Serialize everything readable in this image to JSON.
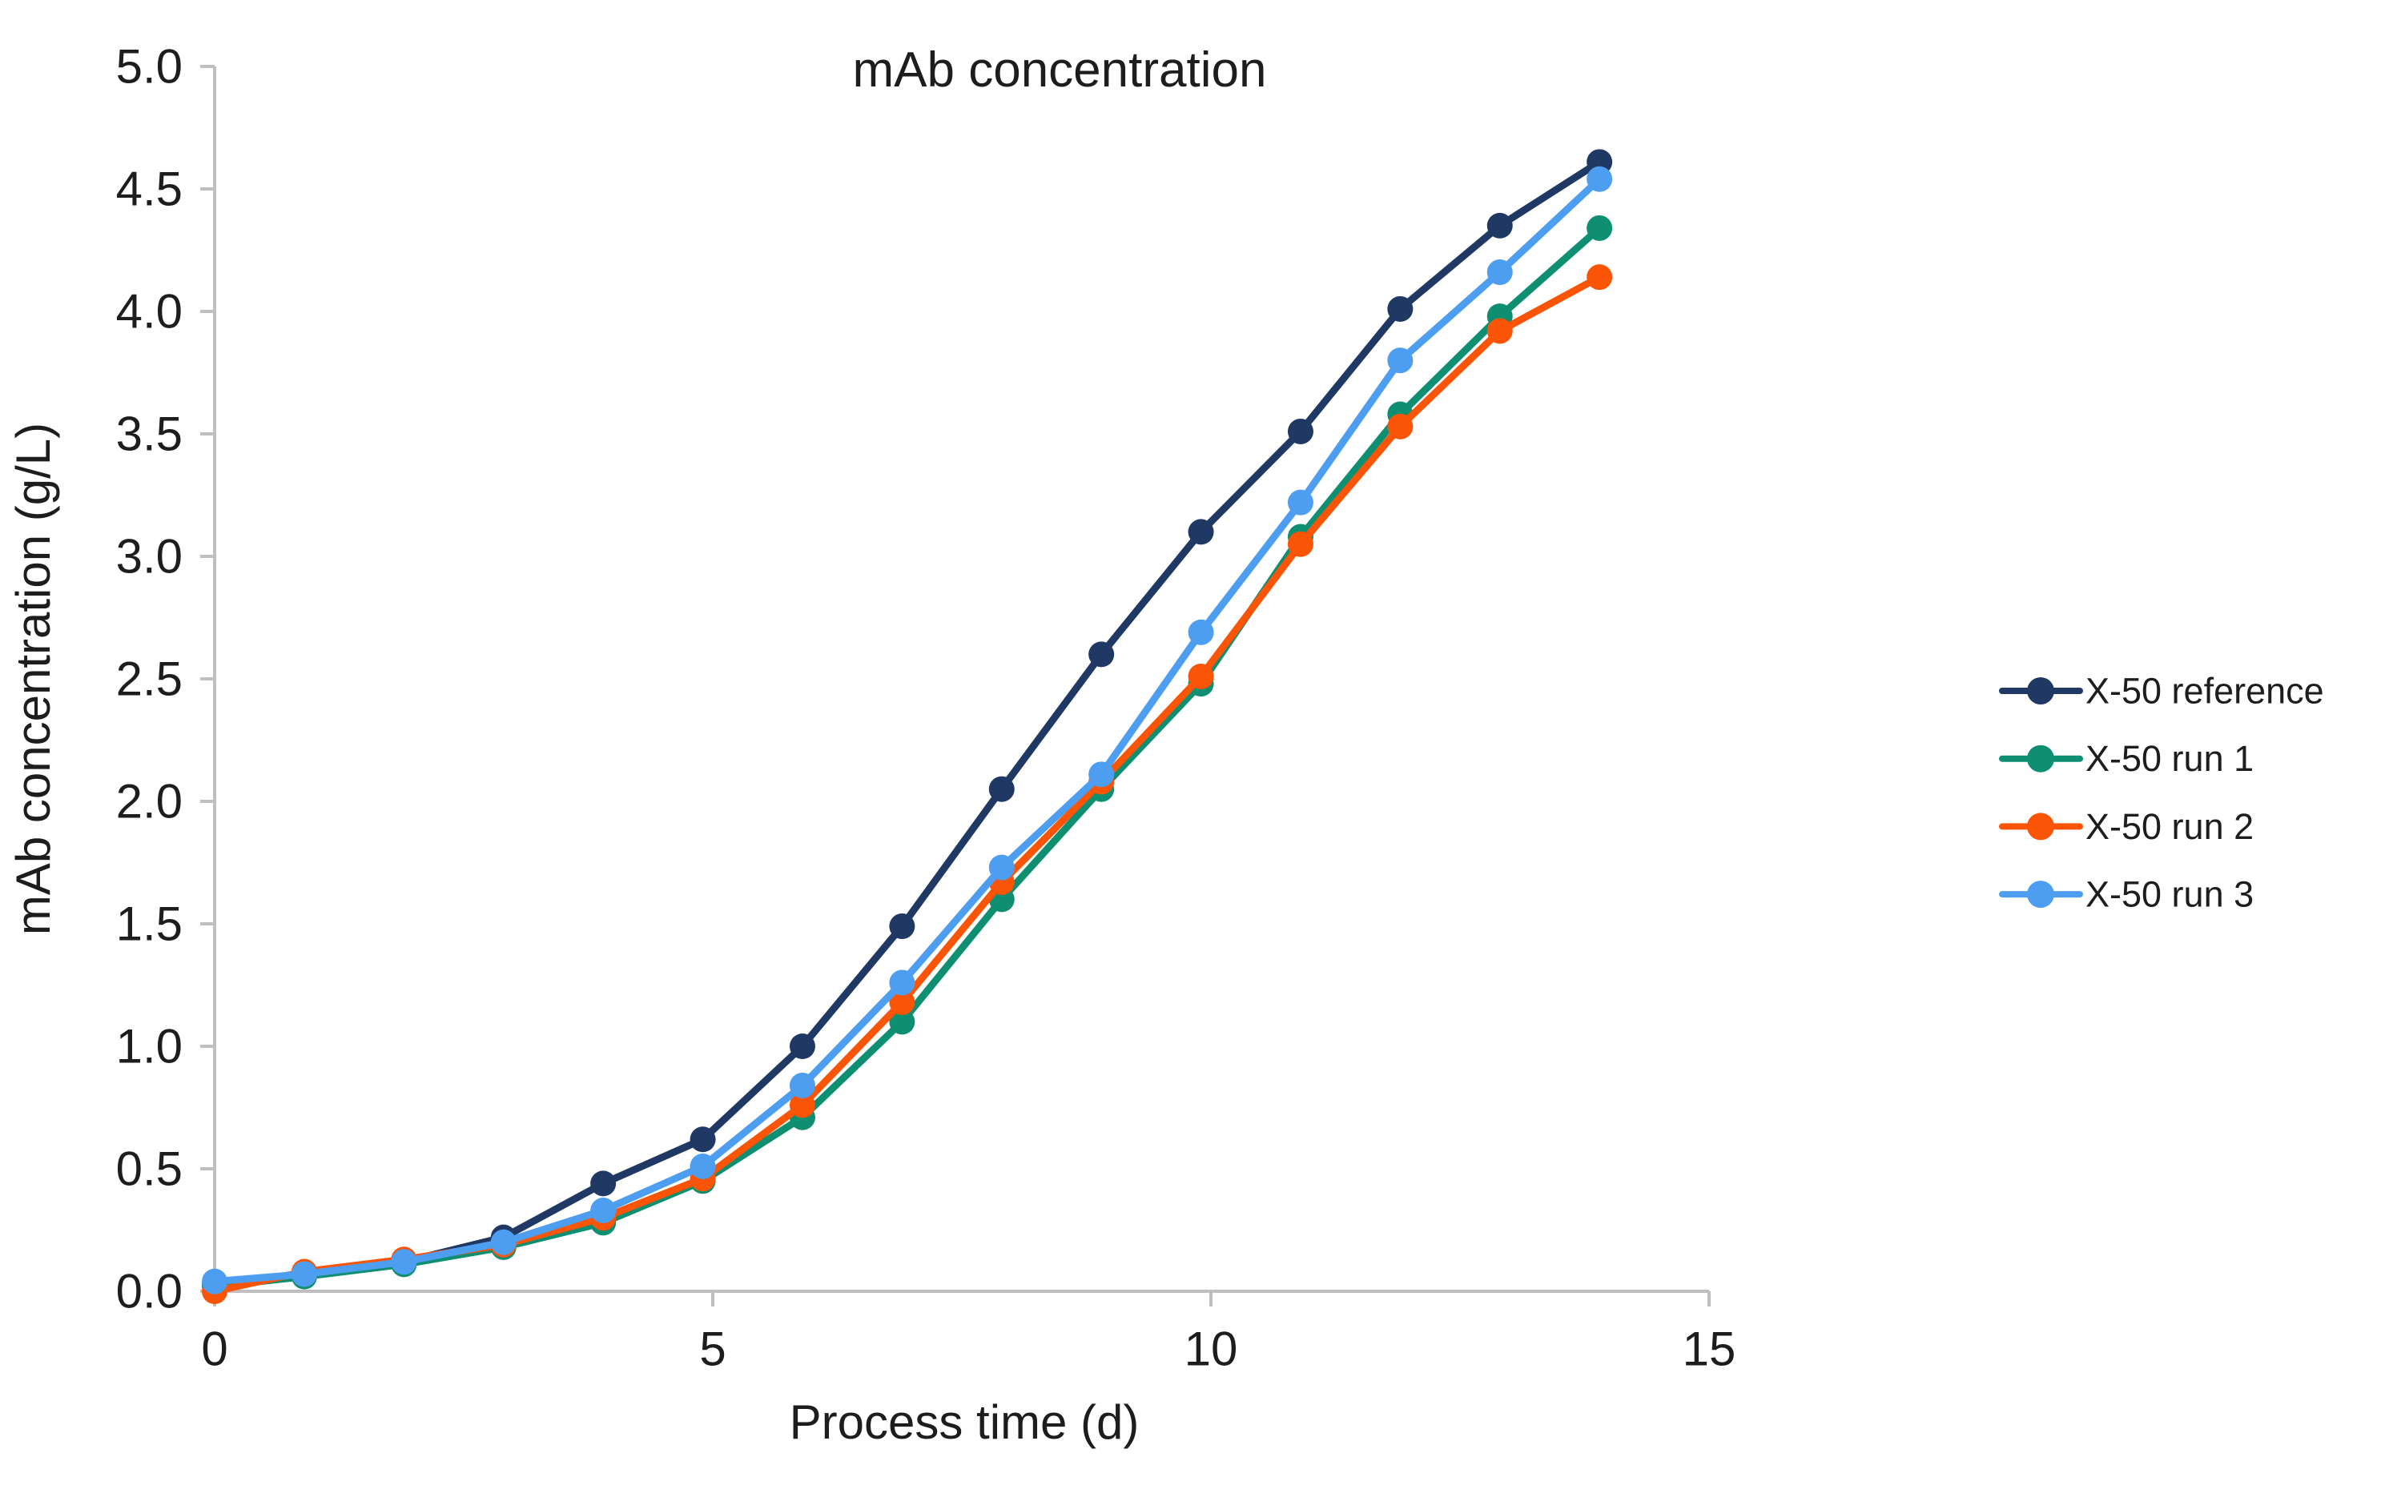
{
  "chart_data": {
    "type": "line",
    "title": "mAb concentration",
    "xlabel": "Process time (d)",
    "ylabel": "mAb concentration (g/L)",
    "xlim": [
      0,
      15
    ],
    "ylim": [
      0.0,
      5.0
    ],
    "x_ticks": [
      0,
      5,
      10,
      15
    ],
    "x_tick_labels": [
      "0",
      "5",
      "10",
      "15"
    ],
    "y_ticks": [
      0.0,
      0.5,
      1.0,
      1.5,
      2.0,
      2.5,
      3.0,
      3.5,
      4.0,
      4.5,
      5.0
    ],
    "y_tick_labels": [
      "0.0",
      "0.5",
      "1.0",
      "1.5",
      "2.0",
      "2.5",
      "3.0",
      "3.5",
      "4.0",
      "4.5",
      "5.0"
    ],
    "grid": false,
    "legend_position": "right",
    "marker": "filled-circle",
    "x": [
      0,
      0.9,
      1.9,
      2.9,
      3.9,
      4.9,
      5.9,
      6.9,
      7.9,
      8.9,
      9.9,
      10.9,
      11.9,
      12.9,
      13.9
    ],
    "series": [
      {
        "name": "X-50 reference",
        "color": "#1f3864",
        "values": [
          0.03,
          0.07,
          0.12,
          0.22,
          0.44,
          0.62,
          1.0,
          1.49,
          2.05,
          2.6,
          3.1,
          3.51,
          4.01,
          4.35,
          4.61
        ]
      },
      {
        "name": "X-50 run 1",
        "color": "#0e8f72",
        "values": [
          0.02,
          0.06,
          0.11,
          0.18,
          0.28,
          0.45,
          0.71,
          1.1,
          1.6,
          2.05,
          2.48,
          3.08,
          3.58,
          3.98,
          4.34
        ]
      },
      {
        "name": "X-50 run 2",
        "color": "#fa5407",
        "values": [
          0.0,
          0.08,
          0.13,
          0.19,
          0.3,
          0.46,
          0.76,
          1.18,
          1.67,
          2.08,
          2.51,
          3.05,
          3.53,
          3.92,
          4.14
        ]
      },
      {
        "name": "X-50 run 3",
        "color": "#4d9ef0",
        "values": [
          0.04,
          0.07,
          0.12,
          0.2,
          0.33,
          0.51,
          0.84,
          1.26,
          1.73,
          2.11,
          2.69,
          3.22,
          3.8,
          4.16,
          4.54
        ]
      }
    ],
    "colors": {
      "axis_line": "#bfbfbf",
      "text": "#1d1d1d",
      "background": "#ffffff"
    }
  }
}
